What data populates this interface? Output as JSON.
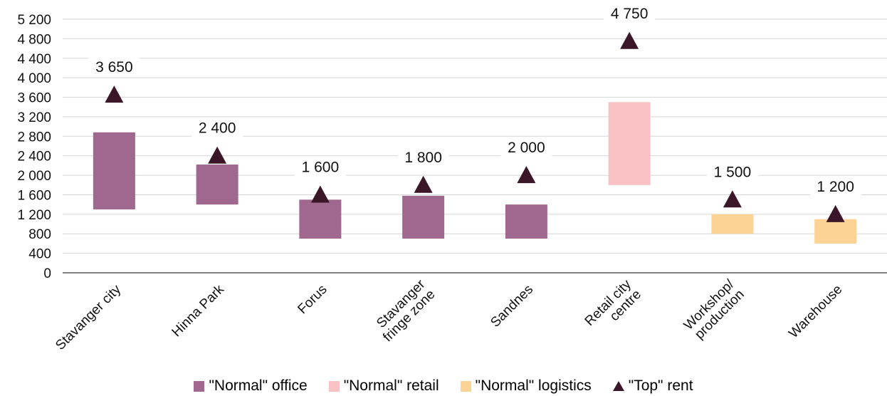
{
  "chart_data": {
    "type": "bar",
    "title": "",
    "xlabel": "",
    "ylabel": "",
    "ylim": [
      0,
      5200
    ],
    "yticks": [
      0,
      400,
      800,
      1200,
      1600,
      2000,
      2400,
      2800,
      3200,
      3600,
      4000,
      4400,
      4800,
      5200
    ],
    "ytick_labels": [
      "0",
      "400",
      "800",
      "1 200",
      "1 600",
      "2 000",
      "2 400",
      "2 800",
      "3 200",
      "3 600",
      "4 000",
      "4 400",
      "4 800",
      "5 200"
    ],
    "grid": true,
    "legend_position": "bottom",
    "categories": [
      [
        "Stavanger city"
      ],
      [
        "Hinna Park"
      ],
      [
        "Forus"
      ],
      [
        "Stavanger",
        "fringe zone"
      ],
      [
        "Sandnes"
      ],
      [
        "Retail city",
        "centre"
      ],
      [
        "Workshop/",
        "production"
      ],
      [
        "Warehouse"
      ]
    ],
    "series": [
      {
        "name": "\"Normal\" office",
        "kind": "range-bar",
        "color": "#a0688e",
        "ranges": [
          [
            1300,
            2880
          ],
          [
            1400,
            2220
          ],
          [
            700,
            1500
          ],
          [
            700,
            1580
          ],
          [
            700,
            1400
          ],
          null,
          null,
          null
        ]
      },
      {
        "name": "\"Normal\" retail",
        "kind": "range-bar",
        "color": "#f8c2c5",
        "ranges": [
          null,
          null,
          null,
          null,
          null,
          [
            1800,
            3500
          ],
          null,
          null
        ]
      },
      {
        "name": "\"Normal\" logistics",
        "kind": "range-bar",
        "color": "#fdd295",
        "ranges": [
          null,
          null,
          null,
          null,
          null,
          null,
          [
            800,
            1200
          ],
          [
            600,
            1100
          ]
        ]
      },
      {
        "name": "\"Top\" rent",
        "kind": "marker",
        "color": "#3a1628",
        "values": [
          3650,
          2400,
          1600,
          1800,
          2000,
          4750,
          1500,
          1200
        ],
        "labels": [
          "3 650",
          "2 400",
          "1 600",
          "1 800",
          "2 000",
          "4 750",
          "1 500",
          "1 200"
        ]
      }
    ]
  }
}
